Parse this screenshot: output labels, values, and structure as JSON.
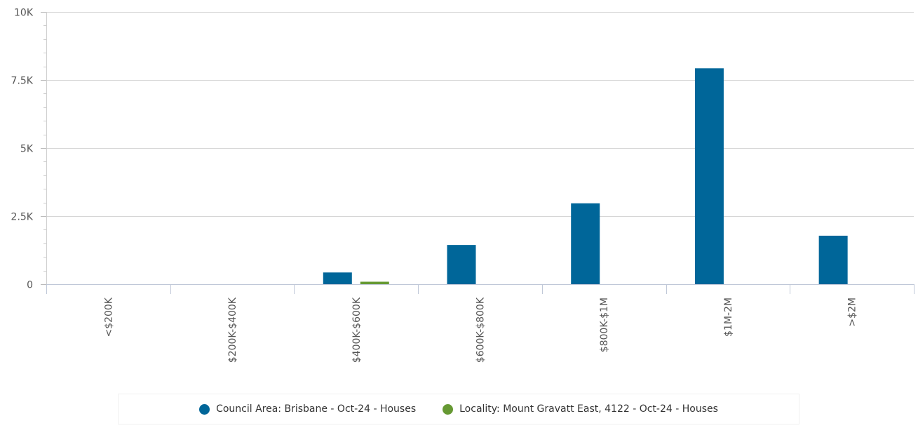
{
  "chart_data": {
    "type": "bar",
    "categories": [
      "<$200K",
      "$200K-$400K",
      "$400K-$600K",
      "$600K-$800K",
      "$800K-$1M",
      "$1M-2M",
      ">$2M"
    ],
    "series": [
      {
        "name": "Council Area: Brisbane - Oct-24 - Houses",
        "color": "#006699",
        "values": [
          0,
          0,
          430,
          1440,
          2970,
          7930,
          1780
        ]
      },
      {
        "name": "Locality: Mount Gravatt East, 4122 - Oct-24 - Houses",
        "color": "#669933",
        "values": [
          0,
          0,
          90,
          0,
          0,
          0,
          0
        ]
      }
    ],
    "ylim": [
      0,
      10000
    ],
    "yticks": [
      {
        "value": 0,
        "label": "0"
      },
      {
        "value": 2500,
        "label": "2.5K"
      },
      {
        "value": 5000,
        "label": "5K"
      },
      {
        "value": 7500,
        "label": "7.5K"
      },
      {
        "value": 10000,
        "label": "10K"
      }
    ],
    "grid": true,
    "legend_position": "bottom"
  }
}
